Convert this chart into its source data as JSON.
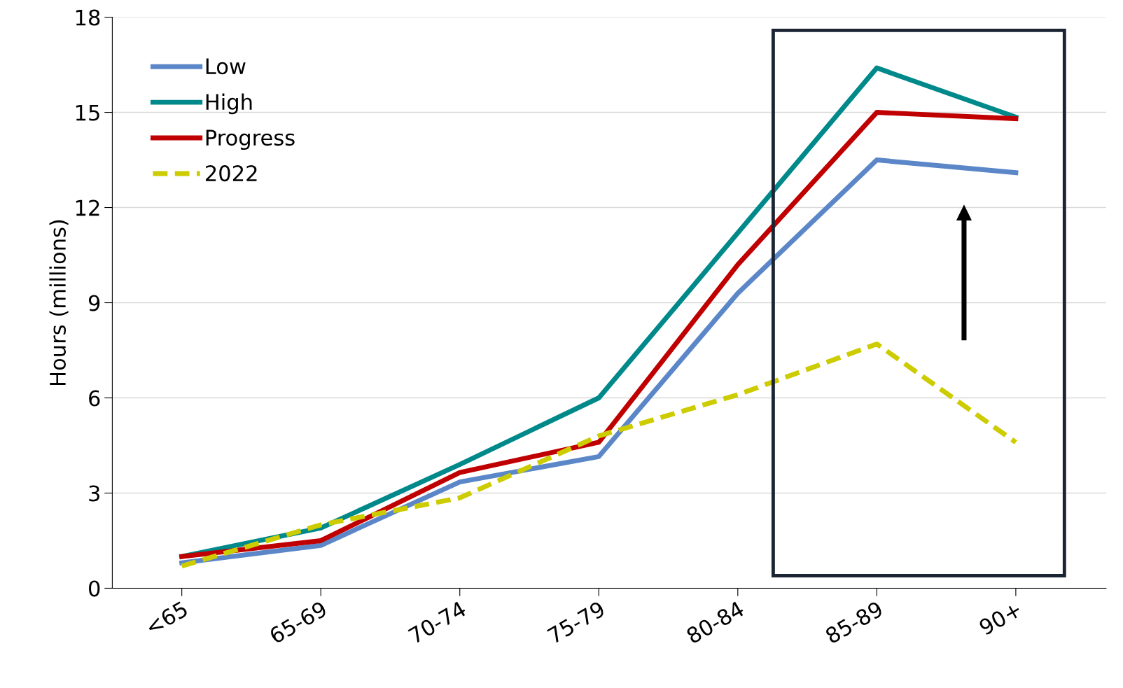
{
  "chart_data": {
    "type": "line",
    "ylabel": "Hours (millions)",
    "categories": [
      "<65",
      "65-69",
      "70-74",
      "75-79",
      "80-84",
      "85-89",
      "90+"
    ],
    "series": [
      {
        "name": "Low",
        "color": "#5b87c8",
        "line_style": "solid",
        "values": [
          0.8,
          1.35,
          3.35,
          4.15,
          9.3,
          13.5,
          13.1
        ]
      },
      {
        "name": "High",
        "color": "#00898a",
        "line_style": "solid",
        "values": [
          1.0,
          1.9,
          3.9,
          6.0,
          11.2,
          16.4,
          14.85
        ]
      },
      {
        "name": "Progress",
        "color": "#c00000",
        "line_style": "solid",
        "values": [
          1.0,
          1.5,
          3.65,
          4.6,
          10.2,
          15.0,
          14.8
        ]
      },
      {
        "name": "2022",
        "color": "#cccc00",
        "line_style": "dashed",
        "values": [
          0.7,
          2.0,
          2.85,
          4.8,
          6.1,
          7.7,
          4.6
        ]
      }
    ],
    "ylim": [
      0,
      18
    ],
    "yticks": [
      0,
      3,
      6,
      9,
      12,
      15,
      18
    ],
    "grid": "y",
    "legend": "top left",
    "marker": "none"
  }
}
